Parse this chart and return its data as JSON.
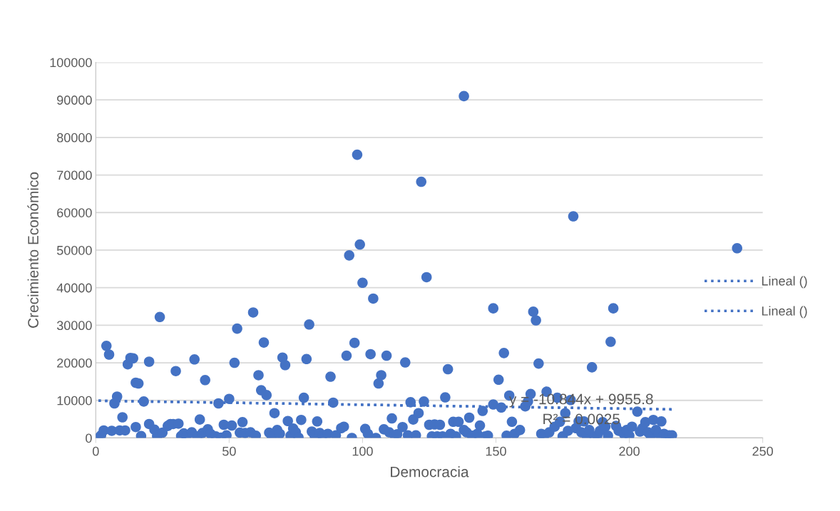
{
  "chart_data": {
    "type": "scatter",
    "xlabel": "Democracia",
    "ylabel": "Crecimiento Económico",
    "xlim": [
      0,
      250
    ],
    "xticks": [
      0,
      50,
      100,
      150,
      200,
      250
    ],
    "ylim": [
      0,
      100000
    ],
    "yticks": [
      0,
      10000,
      20000,
      30000,
      40000,
      50000,
      60000,
      70000,
      80000,
      90000,
      100000
    ],
    "grid": "y",
    "legend": "right",
    "marker": "circle",
    "annotations": [
      "y = -10.844x + 9955.8",
      "R² = 0.0025"
    ],
    "series": [
      {
        "color": "#4472c4",
        "x": [
          1,
          2,
          3,
          4,
          5,
          6,
          7,
          8,
          9,
          10,
          11,
          12,
          13,
          14,
          15,
          16,
          15,
          17,
          18,
          20,
          20,
          22,
          23,
          24,
          25,
          27,
          28,
          29,
          30,
          31,
          32,
          33,
          34,
          36,
          37,
          38,
          39,
          40,
          41,
          42,
          43,
          45,
          46,
          47,
          48,
          49,
          50,
          51,
          52,
          53,
          54,
          55,
          56,
          58,
          59,
          60,
          61,
          62,
          63,
          64,
          65,
          66,
          67,
          68,
          69,
          70,
          71,
          72,
          73,
          74,
          75,
          76,
          77,
          78,
          79,
          80,
          81,
          82,
          83,
          84,
          85,
          87,
          88,
          89,
          90,
          92,
          93,
          94,
          95,
          96,
          97,
          98,
          99,
          100,
          101,
          102,
          103,
          104,
          105,
          106,
          107,
          108,
          109,
          110,
          111,
          112,
          113,
          115,
          116,
          117,
          118,
          119,
          120,
          121,
          122,
          123,
          124,
          125,
          126,
          127,
          128,
          129,
          130,
          131,
          132,
          133,
          134,
          135,
          136,
          138,
          138,
          139,
          140,
          141,
          143,
          144,
          145,
          146,
          147,
          149,
          149,
          151,
          152,
          153,
          154,
          155,
          156,
          157,
          159,
          161,
          162,
          163,
          164,
          165,
          166,
          167,
          168,
          169,
          170,
          172,
          173,
          174,
          175,
          176,
          177,
          178,
          179,
          180,
          181,
          182,
          183,
          184,
          185,
          186,
          187,
          188,
          189,
          190,
          191,
          192,
          193,
          194,
          195,
          196,
          198,
          199,
          200,
          201,
          203,
          204,
          205,
          206,
          207,
          208,
          209,
          210,
          211,
          212,
          213,
          214,
          215,
          216,
          240.4
        ],
        "values": [
          0,
          700,
          2000,
          24500,
          22200,
          1900,
          9200,
          11000,
          2000,
          5500,
          2000,
          19600,
          21300,
          21200,
          14700,
          14500,
          2900,
          500,
          9700,
          20300,
          3700,
          2200,
          500,
          32200,
          1400,
          3200,
          3700,
          3700,
          17800,
          3800,
          500,
          1200,
          400,
          1500,
          20900,
          400,
          4900,
          1300,
          15400,
          2300,
          1100,
          400,
          9200,
          100,
          3500,
          700,
          10400,
          3300,
          20000,
          29100,
          1400,
          4200,
          1300,
          1500,
          33400,
          600,
          16700,
          12700,
          25400,
          11400,
          1400,
          400,
          6600,
          2100,
          1100,
          21400,
          19400,
          4500,
          600,
          2500,
          1500,
          100,
          4800,
          10700,
          21000,
          30200,
          1700,
          700,
          4400,
          1300,
          700,
          1100,
          16300,
          9400,
          700,
          2600,
          3000,
          21900,
          48600,
          0,
          25300,
          75400,
          51500,
          41300,
          2400,
          1100,
          22300,
          37100,
          0,
          14500,
          16700,
          2300,
          21900,
          1500,
          5200,
          700,
          1000,
          2900,
          20100,
          700,
          9500,
          4900,
          700,
          6600,
          68200,
          9700,
          42800,
          3500,
          400,
          3600,
          400,
          3500,
          400,
          10800,
          18300,
          1100,
          4300,
          400,
          4300,
          91000,
          2100,
          1500,
          5400,
          600,
          1100,
          3300,
          7200,
          400,
          600,
          34500,
          8900,
          15500,
          8100,
          22600,
          600,
          11300,
          4300,
          1100,
          2100,
          8400,
          9700,
          11700,
          33600,
          31300,
          19800,
          1100,
          400,
          12300,
          1500,
          3000,
          10700,
          4300,
          400,
          6600,
          1900,
          10100,
          59000,
          2600,
          4400,
          1500,
          4400,
          600,
          2100,
          18800,
          200,
          700,
          1900,
          4200,
          3000,
          600,
          25600,
          34500,
          3200,
          1900,
          1000,
          2100,
          600,
          3000,
          7000,
          1700,
          2600,
          4200,
          1500,
          600,
          4800,
          2100,
          1100,
          4400,
          1100,
          700,
          700,
          700,
          50500
        ]
      },
      {
        "type": "line",
        "name": "Lineal ()",
        "color": "#4472c4",
        "line_style": "dotted",
        "marker": "none",
        "x": [
          1,
          216
        ],
        "values": [
          9900,
          7600
        ]
      },
      {
        "type": "line",
        "name": "Lineal ()",
        "color": "#4472c4",
        "line_style": "dotted",
        "marker": "none",
        "x": [
          1,
          216
        ],
        "values": [
          9900,
          7600
        ]
      }
    ]
  }
}
